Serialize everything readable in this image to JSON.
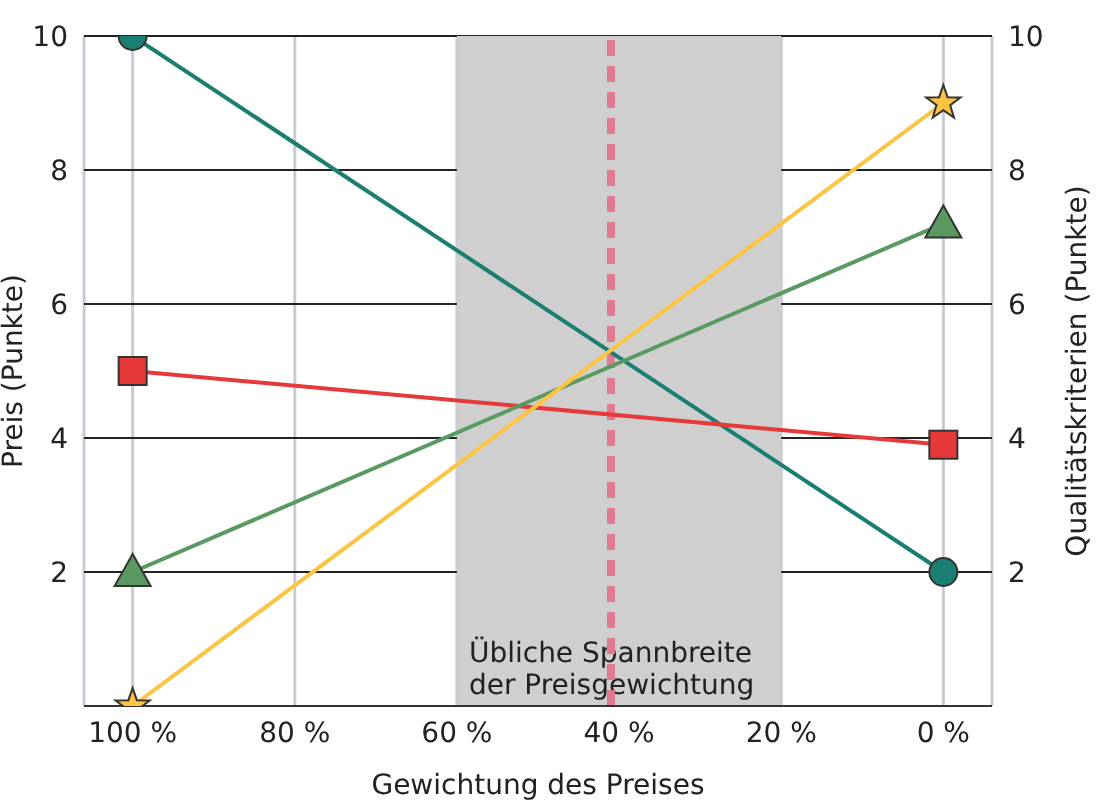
{
  "chart_data": {
    "type": "line",
    "xlabel": "Gewichtung des Preises",
    "ylabel": "Preis (Punkte)",
    "y2label": "Qualitätskriterien (Punkte)",
    "x": [
      100,
      0
    ],
    "series": [
      {
        "color": "#1a7f72",
        "values": [
          10,
          2
        ],
        "marker": "circle"
      },
      {
        "color": "#e8393a",
        "values": [
          5,
          3.9
        ],
        "marker": "square"
      },
      {
        "color": "#5a9a62",
        "values": [
          2,
          7.2
        ],
        "marker": "triangle"
      },
      {
        "color": "#fbc443",
        "values": [
          0,
          9
        ],
        "marker": "star"
      }
    ],
    "xlim": [
      106,
      -6
    ],
    "xticks": [
      {
        "value": 100,
        "label": "100 %"
      },
      {
        "value": 80,
        "label": "80 %"
      },
      {
        "value": 60,
        "label": "60 %"
      },
      {
        "value": 40,
        "label": "40 %"
      },
      {
        "value": 20,
        "label": "20 %"
      },
      {
        "value": 0,
        "label": "0 %"
      }
    ],
    "ylim": [
      0,
      10
    ],
    "yticks": [
      {
        "value": 0,
        "label": null
      },
      2,
      4,
      6,
      8,
      10
    ],
    "y2lim": [
      0,
      10
    ],
    "y2ticks": [
      2,
      4,
      6,
      8,
      10
    ],
    "ref_lines": [
      {
        "axis": "x",
        "value": 41,
        "color": "#e07a90",
        "line_style": "dashed"
      }
    ],
    "bands": [
      {
        "axis": "x",
        "from": 60,
        "to": 20,
        "label": "Übliche Spannbreite\nder Preisgewichtung",
        "color": "#d0cfcf"
      }
    ],
    "grid": true,
    "line_style": "solid"
  }
}
